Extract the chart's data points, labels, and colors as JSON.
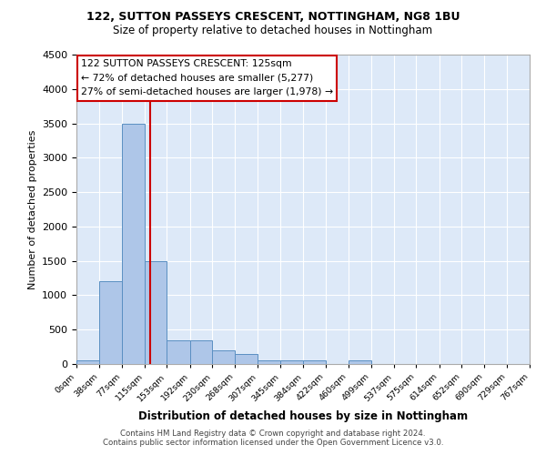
{
  "title1": "122, SUTTON PASSEYS CRESCENT, NOTTINGHAM, NG8 1BU",
  "title2": "Size of property relative to detached houses in Nottingham",
  "xlabel": "Distribution of detached houses by size in Nottingham",
  "ylabel": "Number of detached properties",
  "bin_edges": [
    0,
    38,
    77,
    115,
    153,
    192,
    230,
    268,
    307,
    345,
    384,
    422,
    460,
    499,
    537,
    575,
    614,
    652,
    690,
    729,
    767
  ],
  "bar_heights": [
    50,
    1200,
    3500,
    1500,
    350,
    350,
    200,
    150,
    50,
    50,
    50,
    0,
    50,
    0,
    0,
    0,
    0,
    0,
    0,
    0
  ],
  "bar_color": "#aec6e8",
  "bar_edge_color": "#5a8fc2",
  "property_size": 125,
  "vline_color": "#cc0000",
  "annotation_text": "122 SUTTON PASSEYS CRESCENT: 125sqm\n← 72% of detached houses are smaller (5,277)\n27% of semi-detached houses are larger (1,978) →",
  "annotation_box_color": "#ffffff",
  "annotation_box_edge": "#cc0000",
  "ylim": [
    0,
    4500
  ],
  "yticks": [
    0,
    500,
    1000,
    1500,
    2000,
    2500,
    3000,
    3500,
    4000,
    4500
  ],
  "footer1": "Contains HM Land Registry data © Crown copyright and database right 2024.",
  "footer2": "Contains public sector information licensed under the Open Government Licence v3.0.",
  "plot_bg_color": "#dde9f8"
}
